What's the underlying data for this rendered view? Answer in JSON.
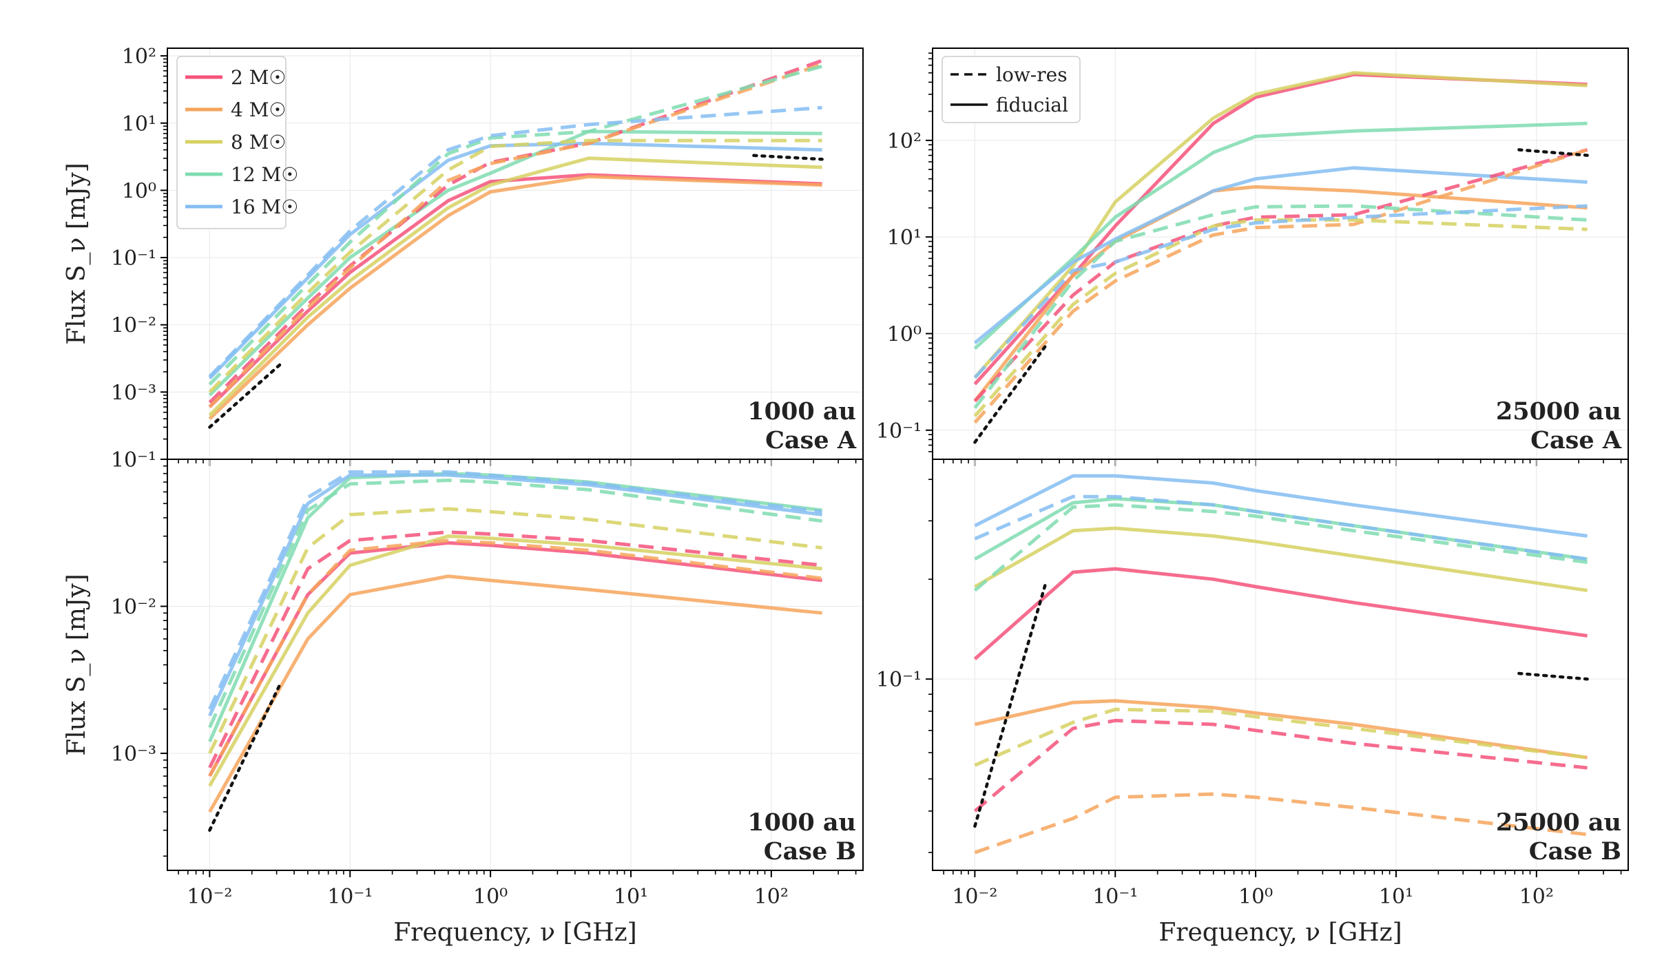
{
  "figure": {
    "x_axis_label": "Frequency, ν [GHz]",
    "y_axis_label": "Flux S_ν [mJy]",
    "legend_masses": [
      "2 M☉",
      "4 M☉",
      "8 M☉",
      "12 M☉",
      "16 M☉"
    ],
    "legend_styles": [
      "low-res",
      "fiducial"
    ]
  },
  "colors": {
    "2": "#f5527a",
    "4": "#f6a55c",
    "8": "#d6d162",
    "12": "#7fdcb0",
    "16": "#84bdf2"
  },
  "chart_data": [
    {
      "type": "line",
      "panel": "top-left",
      "annotation": [
        "1000 au",
        "Case A"
      ],
      "xscale": "log",
      "yscale": "log",
      "xlim": [
        0.005,
        450
      ],
      "ylim": [
        0.0001,
        130
      ],
      "xticks": [
        0.01,
        0.1,
        1,
        10,
        100
      ],
      "xtick_labels": [
        "10⁻²",
        "10⁻¹",
        "10⁰",
        "10¹",
        "10²"
      ],
      "yticks": [
        0.001,
        0.01,
        0.1,
        1,
        10,
        100
      ],
      "ytick_labels": [
        "10⁻³",
        "10⁻²",
        "10⁻¹",
        "10⁰",
        "10¹",
        "10²"
      ],
      "legend": "masses",
      "x": [
        0.01,
        0.05,
        0.1,
        0.5,
        1,
        5,
        230
      ],
      "series": [
        {
          "mass": "2",
          "style": "fiducial",
          "values": [
            0.0006,
            0.016,
            0.06,
            0.7,
            1.35,
            1.7,
            1.25
          ]
        },
        {
          "mass": "4",
          "style": "fiducial",
          "values": [
            0.0004,
            0.01,
            0.035,
            0.42,
            0.95,
            1.6,
            1.2
          ]
        },
        {
          "mass": "8",
          "style": "fiducial",
          "values": [
            0.00045,
            0.013,
            0.045,
            0.55,
            1.2,
            3.0,
            2.2
          ]
        },
        {
          "mass": "12",
          "style": "fiducial",
          "values": [
            0.0009,
            0.025,
            0.1,
            1.0,
            1.8,
            7.5,
            7.0
          ]
        },
        {
          "mass": "16",
          "style": "fiducial",
          "values": [
            0.0016,
            0.05,
            0.22,
            2.8,
            4.6,
            5.0,
            4.0
          ]
        },
        {
          "mass": "2",
          "style": "low-res",
          "values": [
            0.0007,
            0.02,
            0.075,
            1.2,
            2.6,
            5.0,
            85
          ]
        },
        {
          "mass": "4",
          "style": "low-res",
          "values": [
            0.0006,
            0.018,
            0.07,
            1.4,
            2.5,
            5.0,
            75
          ]
        },
        {
          "mass": "8",
          "style": "low-res",
          "values": [
            0.001,
            0.03,
            0.12,
            2.0,
            4.5,
            5.5,
            5.5
          ]
        },
        {
          "mass": "12",
          "style": "low-res",
          "values": [
            0.0013,
            0.04,
            0.17,
            3.5,
            6.0,
            7.5,
            70
          ]
        },
        {
          "mass": "16",
          "style": "low-res",
          "values": [
            0.0017,
            0.055,
            0.25,
            4.0,
            6.5,
            9.5,
            17
          ]
        }
      ],
      "reference_lines": [
        {
          "x": [
            0.01,
            0.032
          ],
          "values": [
            0.0003,
            0.0026
          ]
        },
        {
          "x": [
            75,
            230
          ],
          "values": [
            3.3,
            2.9
          ]
        }
      ]
    },
    {
      "type": "line",
      "panel": "top-right",
      "annotation": [
        "25000 au",
        "Case A"
      ],
      "xscale": "log",
      "yscale": "log",
      "xlim": [
        0.005,
        450
      ],
      "ylim": [
        0.05,
        900
      ],
      "xticks": [
        0.01,
        0.1,
        1,
        10,
        100
      ],
      "xtick_labels": [
        "10⁻²",
        "10⁻¹",
        "10⁰",
        "10¹",
        "10²"
      ],
      "yticks": [
        0.1,
        1,
        10,
        100
      ],
      "ytick_labels": [
        "10⁻¹",
        "10⁰",
        "10¹",
        "10²"
      ],
      "legend": "styles",
      "x": [
        0.01,
        0.05,
        0.1,
        0.5,
        1,
        5,
        230
      ],
      "series": [
        {
          "mass": "2",
          "style": "fiducial",
          "values": [
            0.3,
            4.0,
            13,
            150,
            280,
            480,
            380
          ]
        },
        {
          "mass": "4",
          "style": "fiducial",
          "values": [
            0.2,
            4.0,
            9,
            30,
            33,
            30,
            20
          ]
        },
        {
          "mass": "8",
          "style": "fiducial",
          "values": [
            0.35,
            5.0,
            23,
            170,
            300,
            500,
            370
          ]
        },
        {
          "mass": "12",
          "style": "fiducial",
          "values": [
            0.7,
            6.0,
            16,
            75,
            110,
            125,
            150
          ]
        },
        {
          "mass": "16",
          "style": "fiducial",
          "values": [
            0.8,
            5.5,
            9.5,
            30,
            40,
            52,
            37
          ]
        },
        {
          "mass": "2",
          "style": "low-res",
          "values": [
            0.2,
            2.5,
            5.5,
            13,
            16,
            17,
            80
          ]
        },
        {
          "mass": "4",
          "style": "low-res",
          "values": [
            0.12,
            1.7,
            3.5,
            10.5,
            12.5,
            13.5,
            80
          ]
        },
        {
          "mass": "8",
          "style": "low-res",
          "values": [
            0.14,
            2.0,
            4.2,
            13,
            15,
            15,
            12
          ]
        },
        {
          "mass": "12",
          "style": "low-res",
          "values": [
            0.17,
            3.5,
            9,
            17,
            20.5,
            21,
            15
          ]
        },
        {
          "mass": "16",
          "style": "low-res",
          "values": [
            0.35,
            4.5,
            5.5,
            12,
            14,
            16,
            21
          ]
        }
      ],
      "reference_lines": [
        {
          "x": [
            0.01,
            0.032
          ],
          "values": [
            0.075,
            0.75
          ]
        },
        {
          "x": [
            75,
            230
          ],
          "values": [
            80,
            70
          ]
        }
      ]
    },
    {
      "type": "line",
      "panel": "bottom-left",
      "annotation": [
        "1000 au",
        "Case B"
      ],
      "xscale": "log",
      "yscale": "log",
      "xlim": [
        0.005,
        450
      ],
      "ylim": [
        0.00016,
        0.1
      ],
      "xticks": [
        0.01,
        0.1,
        1,
        10,
        100
      ],
      "xtick_labels": [
        "10⁻²",
        "10⁻¹",
        "10⁰",
        "10¹",
        "10²"
      ],
      "yticks": [
        0.001,
        0.01,
        0.1
      ],
      "ytick_labels": [
        "10⁻³",
        "10⁻²",
        "10⁻¹"
      ],
      "legend": "none",
      "x": [
        0.01,
        0.05,
        0.1,
        0.5,
        1,
        5,
        230
      ],
      "series": [
        {
          "mass": "2",
          "style": "fiducial",
          "values": [
            0.0007,
            0.012,
            0.023,
            0.027,
            0.026,
            0.023,
            0.015
          ]
        },
        {
          "mass": "4",
          "style": "fiducial",
          "values": [
            0.0004,
            0.006,
            0.012,
            0.016,
            0.015,
            0.013,
            0.009
          ]
        },
        {
          "mass": "8",
          "style": "fiducial",
          "values": [
            0.0006,
            0.009,
            0.019,
            0.03,
            0.029,
            0.026,
            0.018
          ]
        },
        {
          "mass": "12",
          "style": "fiducial",
          "values": [
            0.0012,
            0.04,
            0.075,
            0.08,
            0.078,
            0.07,
            0.045
          ]
        },
        {
          "mass": "16",
          "style": "fiducial",
          "values": [
            0.0018,
            0.05,
            0.078,
            0.078,
            0.075,
            0.067,
            0.042
          ]
        },
        {
          "mass": "2",
          "style": "low-res",
          "values": [
            0.0008,
            0.018,
            0.028,
            0.032,
            0.031,
            0.028,
            0.019
          ]
        },
        {
          "mass": "4",
          "style": "low-res",
          "values": [
            0.0007,
            0.012,
            0.024,
            0.028,
            0.027,
            0.024,
            0.0155
          ]
        },
        {
          "mass": "8",
          "style": "low-res",
          "values": [
            0.001,
            0.025,
            0.042,
            0.046,
            0.044,
            0.039,
            0.025
          ]
        },
        {
          "mass": "12",
          "style": "low-res",
          "values": [
            0.0015,
            0.045,
            0.068,
            0.072,
            0.07,
            0.062,
            0.038
          ]
        },
        {
          "mass": "16",
          "style": "low-res",
          "values": [
            0.002,
            0.055,
            0.082,
            0.082,
            0.078,
            0.069,
            0.044
          ]
        }
      ],
      "reference_lines": [
        {
          "x": [
            0.01,
            0.032
          ],
          "values": [
            0.0003,
            0.003
          ]
        }
      ]
    },
    {
      "type": "line",
      "panel": "bottom-right",
      "annotation": [
        "25000 au",
        "Case B"
      ],
      "xscale": "log",
      "yscale": "log",
      "xlim": [
        0.005,
        450
      ],
      "ylim": [
        0.0265,
        0.46
      ],
      "xticks": [
        0.01,
        0.1,
        1,
        10,
        100
      ],
      "xtick_labels": [
        "10⁻²",
        "10⁻¹",
        "10⁰",
        "10¹",
        "10²"
      ],
      "yticks": [
        0.1
      ],
      "ytick_labels": [
        "10⁻¹"
      ],
      "legend": "none",
      "x": [
        0.01,
        0.05,
        0.1,
        0.5,
        1,
        5,
        230
      ],
      "series": [
        {
          "mass": "2",
          "style": "fiducial",
          "values": [
            0.115,
            0.21,
            0.215,
            0.2,
            0.19,
            0.17,
            0.135
          ]
        },
        {
          "mass": "4",
          "style": "fiducial",
          "values": [
            0.073,
            0.085,
            0.086,
            0.082,
            0.079,
            0.073,
            0.058
          ]
        },
        {
          "mass": "8",
          "style": "fiducial",
          "values": [
            0.19,
            0.28,
            0.285,
            0.27,
            0.26,
            0.235,
            0.185
          ]
        },
        {
          "mass": "12",
          "style": "fiducial",
          "values": [
            0.23,
            0.34,
            0.35,
            0.335,
            0.32,
            0.29,
            0.23
          ]
        },
        {
          "mass": "16",
          "style": "fiducial",
          "values": [
            0.29,
            0.41,
            0.41,
            0.39,
            0.37,
            0.335,
            0.27
          ]
        },
        {
          "mass": "2",
          "style": "low-res",
          "values": [
            0.04,
            0.071,
            0.075,
            0.073,
            0.07,
            0.064,
            0.054
          ]
        },
        {
          "mass": "4",
          "style": "low-res",
          "values": [
            0.03,
            0.038,
            0.044,
            0.045,
            0.044,
            0.041,
            0.034
          ]
        },
        {
          "mass": "8",
          "style": "low-res",
          "values": [
            0.055,
            0.074,
            0.081,
            0.08,
            0.077,
            0.071,
            0.058
          ]
        },
        {
          "mass": "12",
          "style": "low-res",
          "values": [
            0.185,
            0.33,
            0.335,
            0.32,
            0.31,
            0.28,
            0.225
          ]
        },
        {
          "mass": "16",
          "style": "low-res",
          "values": [
            0.265,
            0.355,
            0.355,
            0.335,
            0.32,
            0.29,
            0.23
          ]
        }
      ],
      "reference_lines": [
        {
          "x": [
            0.01,
            0.032
          ],
          "values": [
            0.036,
            0.195
          ]
        },
        {
          "x": [
            75,
            230
          ],
          "values": [
            0.104,
            0.1
          ]
        }
      ]
    }
  ]
}
